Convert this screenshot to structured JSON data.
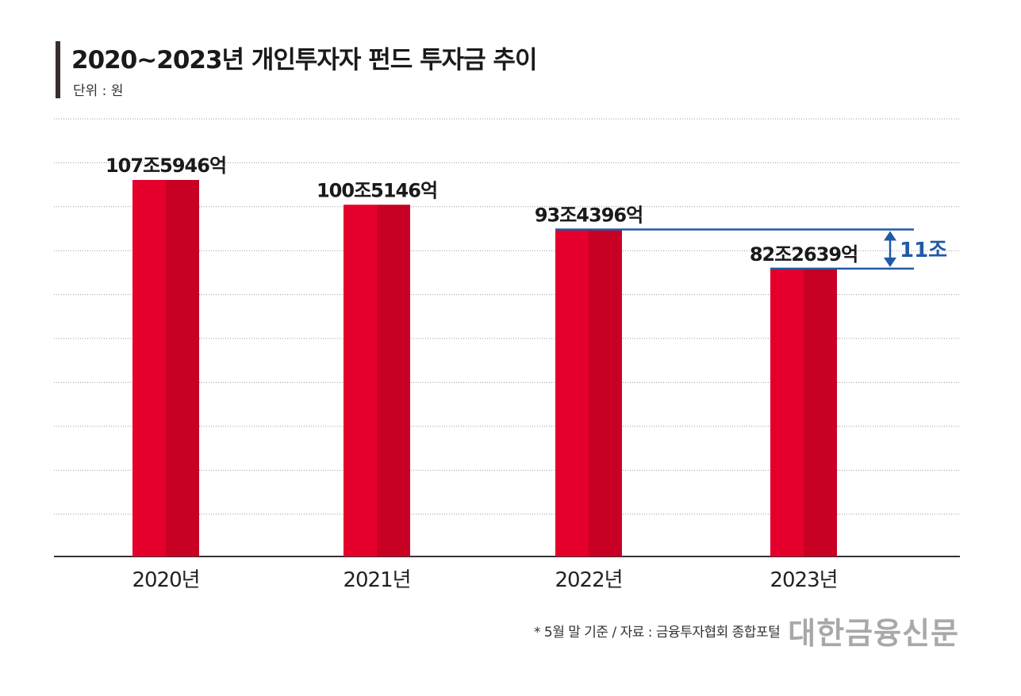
{
  "header": {
    "title": "2020~2023년 개인투자자 펀드 투자금 추이",
    "unit": "단위 : 원"
  },
  "footer": {
    "source": "* 5월 말 기준 / 자료 : 금융투자협회 종합포털",
    "brand": "대한금융신문"
  },
  "colors": {
    "bar_light": "#e4002b",
    "bar_dark": "#c80024",
    "bracket": "#1f5aa6",
    "grid": "#9a9a9a",
    "text": "#1a1a1a"
  },
  "chart_data": {
    "type": "bar",
    "title": "2020~2023년 개인투자자 펀드 투자금 추이",
    "unit": "단위 : 원",
    "categories": [
      "2020년",
      "2021년",
      "2022년",
      "2023년"
    ],
    "values": [
      1075946,
      1005146,
      934396,
      822639
    ],
    "value_unit": "억 원",
    "data_labels": [
      "107조5946억",
      "100조5146억",
      "93조4396억",
      "82조2639억"
    ],
    "ylim": [
      0,
      1075946
    ],
    "grid": true,
    "annotation": {
      "text": "11조",
      "from_category": "2022년",
      "to_category": "2023년"
    }
  }
}
